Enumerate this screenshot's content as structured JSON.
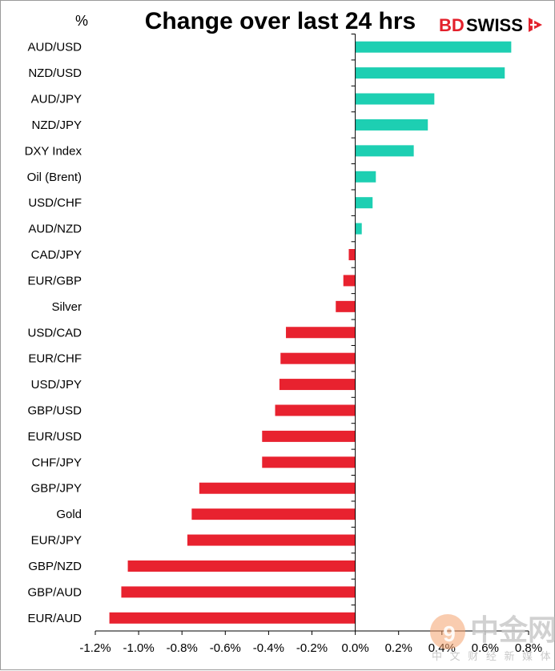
{
  "chart_data": {
    "type": "bar",
    "orientation": "horizontal",
    "title": "Change over last 24 hrs",
    "unit_label": "%",
    "categories": [
      "AUD/USD",
      "NZD/USD",
      "AUD/JPY",
      "NZD/JPY",
      "DXY Index",
      "Oil (Brent)",
      "USD/CHF",
      "AUD/NZD",
      "CAD/JPY",
      "EUR/GBP",
      "Silver",
      "USD/CAD",
      "EUR/CHF",
      "USD/JPY",
      "GBP/USD",
      "EUR/USD",
      "CHF/JPY",
      "GBP/JPY",
      "Gold",
      "EUR/JPY",
      "GBP/NZD",
      "GBP/AUD",
      "EUR/AUD"
    ],
    "values": [
      0.72,
      0.69,
      0.365,
      0.335,
      0.27,
      0.095,
      0.08,
      0.03,
      -0.03,
      -0.055,
      -0.09,
      -0.32,
      -0.345,
      -0.35,
      -0.37,
      -0.43,
      -0.43,
      -0.72,
      -0.755,
      -0.775,
      -1.05,
      -1.08,
      -1.135
    ],
    "xlim": [
      -1.2,
      0.8
    ],
    "xticks": [
      -1.2,
      -1.0,
      -0.8,
      -0.6,
      -0.4,
      -0.2,
      0.0,
      0.2,
      0.4,
      0.6,
      0.8
    ],
    "xtick_labels": [
      "-1.2%",
      "-1.0%",
      "-0.8%",
      "-0.6%",
      "-0.4%",
      "-0.2%",
      "0.0%",
      "0.2%",
      "0.4%",
      "0.6%",
      "0.8%"
    ],
    "positive_color": "#1dcfb2",
    "negative_color": "#e8222f",
    "xlabel": "",
    "ylabel": ""
  },
  "brand": {
    "prefix": "BD",
    "suffix": "SWISS"
  },
  "watermark": {
    "main": "中金网",
    "sub": "中 文 财 经 新 媒 体"
  }
}
